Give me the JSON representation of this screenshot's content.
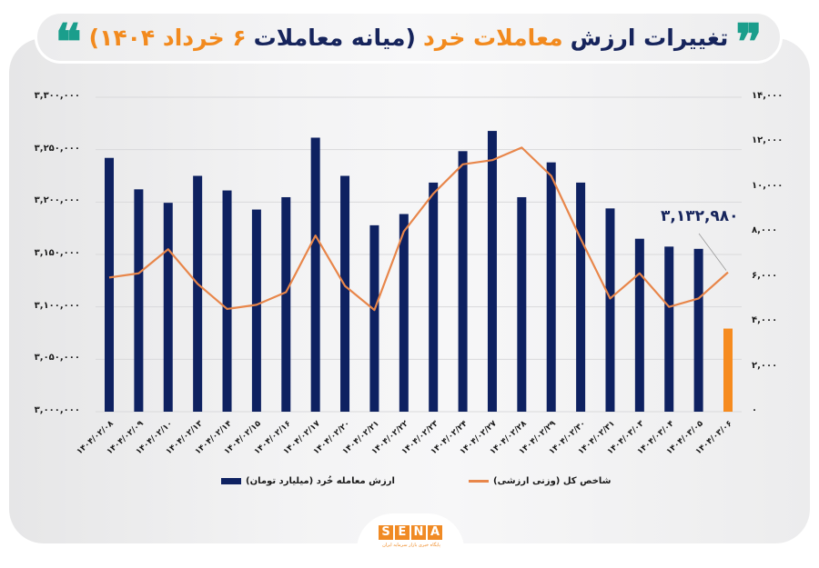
{
  "title": {
    "part1": "تغییرات ارزش",
    "part2": "معاملات خرد",
    "part3": "(میانه معاملات",
    "part4": "۶ خرداد ۱۴۰۴)",
    "open_quote": "❞",
    "close_quote": "❝"
  },
  "colors": {
    "bar": "#0e2161",
    "bar_highlight": "#f68b1f",
    "line": "#e8864a",
    "accent_teal": "#1a9e8c",
    "title_navy": "#16245c",
    "title_orange": "#f28a1e"
  },
  "annotation": "۳,۱۳۲,۹۸۰",
  "legend": {
    "bar_label": "ارزش معامله خُرد (میلیارد تومان)",
    "line_label": "شاخص کل (وزنی ارزشی)"
  },
  "logo": {
    "letters": [
      "S",
      "E",
      "N",
      "A"
    ],
    "subtitle": "پایگاه خبری بازار سرمایه ایران"
  },
  "axes": {
    "left_ticks": [
      "۳,۳۰۰,۰۰۰",
      "۳,۲۵۰,۰۰۰",
      "۳,۲۰۰,۰۰۰",
      "۳,۱۵۰,۰۰۰",
      "۳,۱۰۰,۰۰۰",
      "۳,۰۵۰,۰۰۰",
      "۳,۰۰۰,۰۰۰"
    ],
    "right_ticks": [
      "۱۴,۰۰۰",
      "۱۲,۰۰۰",
      "۱۰,۰۰۰",
      "۸,۰۰۰",
      "۶,۰۰۰",
      "۴,۰۰۰",
      "۲,۰۰۰",
      "۰"
    ]
  },
  "chart_data": {
    "type": "bar",
    "title": "تغییرات ارزش معاملات خرد (میانه معاملات ۶ خرداد ۱۴۰۴)",
    "categories": [
      "۱۴۰۴/۰۲/۰۸",
      "۱۴۰۴/۰۲/۰۹",
      "۱۴۰۴/۰۲/۱۰",
      "۱۴۰۴/۰۲/۱۳",
      "۱۴۰۴/۰۲/۱۴",
      "۱۴۰۴/۰۲/۱۵",
      "۱۴۰۴/۰۲/۱۶",
      "۱۴۰۴/۰۲/۱۷",
      "۱۴۰۴/۰۲/۲۰",
      "۱۴۰۴/۰۲/۲۱",
      "۱۴۰۴/۰۲/۲۲",
      "۱۴۰۴/۰۲/۲۳",
      "۱۴۰۴/۰۲/۲۴",
      "۱۴۰۴/۰۲/۲۷",
      "۱۴۰۴/۰۲/۲۸",
      "۱۴۰۴/۰۲/۲۹",
      "۱۴۰۴/۰۲/۳۰",
      "۱۴۰۴/۰۲/۳۱",
      "۱۴۰۴/۰۳/۰۳",
      "۱۴۰۴/۰۳/۰۴",
      "۱۴۰۴/۰۳/۰۵",
      "۱۴۰۴/۰۳/۰۶"
    ],
    "series": [
      {
        "name": "ارزش معامله خُرد (میلیارد تومان)",
        "type": "bar",
        "axis": "right",
        "values": [
          11300,
          9900,
          9300,
          10500,
          9850,
          9000,
          9550,
          12200,
          10500,
          8300,
          8800,
          10200,
          11600,
          12500,
          9550,
          11100,
          10200,
          9050,
          7700,
          7350,
          7250,
          3700
        ],
        "highlight_last": true
      },
      {
        "name": "شاخص کل (وزنی ارزشی)",
        "type": "line",
        "axis": "left",
        "values": [
          3128000,
          3132000,
          3155000,
          3122000,
          3098000,
          3102000,
          3114000,
          3168000,
          3120000,
          3097000,
          3172000,
          3208000,
          3236000,
          3240000,
          3252000,
          3225000,
          3165000,
          3108000,
          3132000,
          3100000,
          3108000,
          3132980
        ]
      }
    ],
    "annotations": [
      {
        "category": "۱۴۰۴/۰۳/۰۶",
        "series": "شاخص کل (وزنی ارزشی)",
        "text": "۳,۱۳۲,۹۸۰"
      }
    ],
    "left_axis": {
      "label": "",
      "ylim": [
        3000000,
        3300000
      ],
      "step": 50000
    },
    "right_axis": {
      "label": "",
      "ylim": [
        0,
        14000
      ],
      "step": 2000
    },
    "grid": true,
    "legend_position": "bottom"
  }
}
